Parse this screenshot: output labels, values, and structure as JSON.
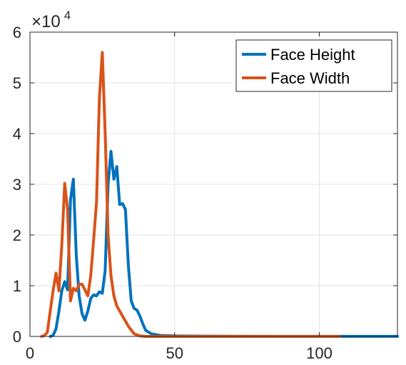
{
  "chart_data": {
    "type": "line",
    "title": "",
    "xlabel": "",
    "ylabel": "",
    "xlim": [
      0,
      127
    ],
    "ylim": [
      0,
      60000
    ],
    "xticks": [
      0,
      50,
      100
    ],
    "yticks": [
      0,
      10000,
      20000,
      30000,
      40000,
      50000,
      60000
    ],
    "ytick_labels": [
      "0",
      "1",
      "2",
      "3",
      "4",
      "5",
      "6"
    ],
    "y_multiplier": {
      "base": "×10",
      "exponent": "4"
    },
    "grid": true,
    "legend": "top-right",
    "series": [
      {
        "name": "Face Height",
        "color": "#0072BD",
        "points": [
          [
            7,
            0
          ],
          [
            8,
            200
          ],
          [
            9,
            1500
          ],
          [
            10,
            5000
          ],
          [
            11,
            9000
          ],
          [
            12,
            10800
          ],
          [
            13,
            9200
          ],
          [
            14,
            27000
          ],
          [
            15,
            31000
          ],
          [
            16,
            16000
          ],
          [
            17,
            8000
          ],
          [
            18,
            4500
          ],
          [
            19,
            3200
          ],
          [
            20,
            5000
          ],
          [
            21,
            7500
          ],
          [
            22,
            8200
          ],
          [
            23,
            8000
          ],
          [
            24,
            8800
          ],
          [
            25,
            8500
          ],
          [
            26,
            13000
          ],
          [
            27,
            30000
          ],
          [
            28,
            36500
          ],
          [
            29,
            31000
          ],
          [
            30,
            33500
          ],
          [
            31,
            26000
          ],
          [
            32,
            26200
          ],
          [
            33,
            25000
          ],
          [
            34,
            14000
          ],
          [
            35,
            7000
          ],
          [
            36,
            5500
          ],
          [
            37,
            5200
          ],
          [
            38,
            4000
          ],
          [
            39,
            2500
          ],
          [
            40,
            1200
          ],
          [
            42,
            500
          ],
          [
            45,
            200
          ],
          [
            50,
            100
          ],
          [
            60,
            50
          ],
          [
            70,
            30
          ],
          [
            90,
            20
          ],
          [
            110,
            10
          ],
          [
            127,
            10
          ]
        ]
      },
      {
        "name": "Face Width",
        "color": "#D95319",
        "points": [
          [
            4,
            0
          ],
          [
            5,
            200
          ],
          [
            6,
            800
          ],
          [
            7,
            5000
          ],
          [
            8,
            9000
          ],
          [
            9,
            12500
          ],
          [
            10,
            9000
          ],
          [
            11,
            18000
          ],
          [
            12,
            30200
          ],
          [
            13,
            25000
          ],
          [
            14,
            7000
          ],
          [
            15,
            9500
          ],
          [
            16,
            9000
          ],
          [
            17,
            10300
          ],
          [
            18,
            10300
          ],
          [
            19,
            9200
          ],
          [
            20,
            8000
          ],
          [
            21,
            12000
          ],
          [
            22,
            19000
          ],
          [
            23,
            26500
          ],
          [
            24,
            47000
          ],
          [
            25,
            56000
          ],
          [
            26,
            40000
          ],
          [
            27,
            20000
          ],
          [
            28,
            12000
          ],
          [
            29,
            8000
          ],
          [
            30,
            6000
          ],
          [
            32,
            4000
          ],
          [
            34,
            2000
          ],
          [
            36,
            500
          ],
          [
            38,
            100
          ],
          [
            40,
            0
          ],
          [
            50,
            0
          ],
          [
            60,
            0
          ],
          [
            80,
            0
          ],
          [
            100,
            0
          ],
          [
            107,
            0
          ]
        ]
      }
    ]
  }
}
